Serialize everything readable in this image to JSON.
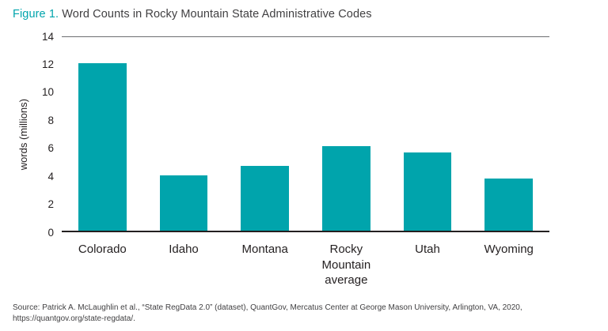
{
  "title": {
    "prefix": "Figure 1.",
    "rest": " Word Counts in Rocky Mountain State Administrative Codes"
  },
  "chart_data": {
    "type": "bar",
    "categories": [
      "Colorado",
      "Idaho",
      "Montana",
      "Rocky Mountain average",
      "Utah",
      "Wyoming"
    ],
    "values": [
      12.1,
      4.0,
      4.7,
      6.1,
      5.65,
      3.8
    ],
    "title": "Figure 1. Word Counts in Rocky Mountain State Administrative Codes",
    "xlabel": "",
    "ylabel": "words (millions)",
    "ylim": [
      0,
      14
    ],
    "yticks": [
      0,
      2,
      4,
      6,
      8,
      10,
      12,
      14
    ],
    "bar_color": "#00a4ac",
    "grid": false,
    "legend": false
  },
  "source": "Source: Patrick A. McLaughlin et al., “State RegData 2.0” (dataset), QuantGov, Mercatus Center at George Mason University, Arlington, VA, 2020, https://quantgov.org/state-regdata/."
}
